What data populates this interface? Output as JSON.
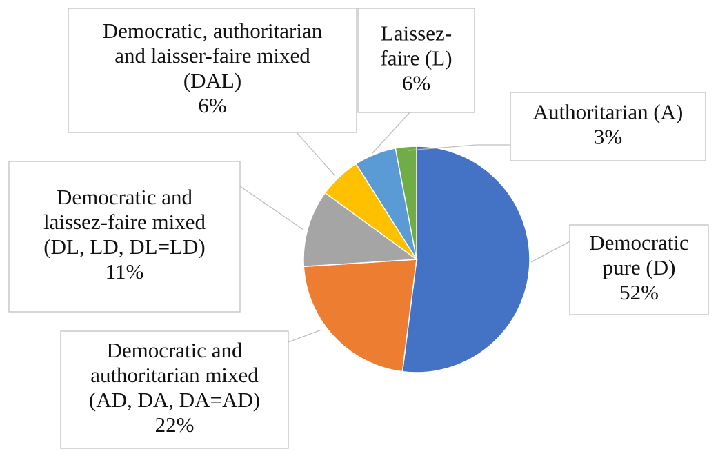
{
  "chart_data": {
    "type": "pie",
    "title": "",
    "slices": [
      {
        "key": "D",
        "label_lines": [
          "Democratic",
          "pure (D)"
        ],
        "value": 52,
        "value_label": "52%",
        "color": "#4472c4"
      },
      {
        "key": "AD",
        "label_lines": [
          "Democratic and",
          "authoritarian mixed",
          "(AD, DA, DA=AD)"
        ],
        "value": 22,
        "value_label": "22%",
        "color": "#ed7d31"
      },
      {
        "key": "DL",
        "label_lines": [
          "Democratic and",
          "laissez-faire mixed",
          "(DL, LD, DL=LD)"
        ],
        "value": 11,
        "value_label": "11%",
        "color": "#a5a5a5"
      },
      {
        "key": "DAL",
        "label_lines": [
          "Democratic, authoritarian",
          "and laisser-faire mixed",
          "(DAL)"
        ],
        "value": 6,
        "value_label": "6%",
        "color": "#ffc000"
      },
      {
        "key": "L",
        "label_lines": [
          "Laissez-",
          "faire (L)"
        ],
        "value": 6,
        "value_label": "6%",
        "color": "#5b9bd5"
      },
      {
        "key": "A",
        "label_lines": [
          "Authoritarian (A)"
        ],
        "value": 3,
        "value_label": "3%",
        "color": "#70ad47"
      }
    ],
    "start_angle_deg": 0,
    "direction": "clockwise",
    "legend": "none",
    "labels": "callouts"
  }
}
